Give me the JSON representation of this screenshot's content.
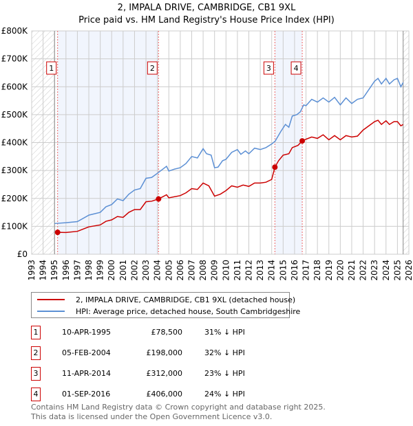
{
  "chart_data": {
    "type": "line",
    "title": "2, IMPALA DRIVE, CAMBRIDGE, CB1 9XL",
    "subtitle": "Price paid vs. HM Land Registry's House Price Index (HPI)",
    "xlim": [
      1993,
      2026
    ],
    "ylim": [
      0,
      800000
    ],
    "x_ticks": [
      "1993",
      "1994",
      "1995",
      "1996",
      "1997",
      "1998",
      "1999",
      "2000",
      "2001",
      "2002",
      "2003",
      "2004",
      "2005",
      "2006",
      "2007",
      "2008",
      "2009",
      "2010",
      "2011",
      "2012",
      "2013",
      "2014",
      "2015",
      "2016",
      "2017",
      "2018",
      "2019",
      "2020",
      "2021",
      "2022",
      "2023",
      "2024",
      "2025",
      "2026"
    ],
    "y_ticks": [
      {
        "v": 0,
        "label": "£0"
      },
      {
        "v": 100000,
        "label": "£100K"
      },
      {
        "v": 200000,
        "label": "£200K"
      },
      {
        "v": 300000,
        "label": "£300K"
      },
      {
        "v": 400000,
        "label": "£400K"
      },
      {
        "v": 500000,
        "label": "£500K"
      },
      {
        "v": 600000,
        "label": "£600K"
      },
      {
        "v": 700000,
        "label": "£700K"
      },
      {
        "v": 800000,
        "label": "£800K"
      }
    ],
    "grid": true,
    "hatched_ranges": [
      [
        1993,
        1995
      ],
      [
        2025.5,
        2026
      ]
    ],
    "shaded_ranges": [
      [
        1995.27,
        2004.1
      ],
      [
        2014.28,
        2016.67
      ]
    ],
    "series": [
      {
        "name": "2, IMPALA DRIVE, CAMBRIDGE, CB1 9XL (detached house)",
        "color": "#cc0000",
        "x": [
          1995.27,
          1996,
          1997,
          1998,
          1999,
          1999.5,
          2000,
          2000.5,
          2001,
          2001.5,
          2002,
          2002.5,
          2003,
          2003.5,
          2004.1,
          2004.8,
          2005,
          2006,
          2006.5,
          2007,
          2007.5,
          2008,
          2008.5,
          2009,
          2009.5,
          2010,
          2010.5,
          2011,
          2011.5,
          2012,
          2012.5,
          2013,
          2013.5,
          2014,
          2014.28,
          2014.6,
          2015,
          2015.5,
          2015.8,
          2016.3,
          2016.67,
          2017,
          2017.5,
          2018,
          2018.5,
          2019,
          2019.5,
          2020,
          2020.5,
          2021,
          2021.5,
          2022,
          2022.5,
          2023,
          2023.3,
          2023.6,
          2024,
          2024.3,
          2024.7,
          2025,
          2025.3,
          2025.5
        ],
        "y": [
          78.5,
          78,
          82,
          98,
          105,
          118,
          123,
          135,
          132,
          150,
          160,
          160,
          188,
          190,
          198,
          213,
          202,
          210,
          220,
          235,
          232,
          255,
          245,
          208,
          215,
          228,
          245,
          240,
          248,
          243,
          255,
          255,
          258,
          268,
          312,
          335,
          355,
          360,
          382,
          390,
          406,
          412,
          420,
          415,
          428,
          410,
          425,
          410,
          425,
          420,
          423,
          445,
          460,
          475,
          480,
          465,
          478,
          465,
          475,
          475,
          460,
          465
        ]
      },
      {
        "name": "HPI: Average price, detached house, South Cambridgeshire",
        "color": "#5b8fd4",
        "x": [
          1995,
          1996,
          1997,
          1998,
          1999,
          1999.5,
          2000,
          2000.5,
          2001,
          2001.5,
          2002,
          2002.5,
          2003,
          2003.5,
          2004,
          2004.8,
          2005,
          2005.5,
          2006,
          2006.5,
          2007,
          2007.5,
          2008,
          2008.3,
          2008.7,
          2009,
          2009.3,
          2009.7,
          2010,
          2010.5,
          2011,
          2011.3,
          2011.7,
          2012,
          2012.5,
          2013,
          2013.5,
          2014,
          2014.3,
          2014.8,
          2015.2,
          2015.5,
          2015.8,
          2016.2,
          2016.5,
          2016.8,
          2017,
          2017.5,
          2018,
          2018.5,
          2019,
          2019.5,
          2020,
          2020.5,
          2021,
          2021.5,
          2022,
          2022.5,
          2023,
          2023.3,
          2023.6,
          2024,
          2024.3,
          2024.7,
          2025,
          2025.3,
          2025.5
        ],
        "y": [
          110,
          113,
          117,
          140,
          150,
          170,
          178,
          198,
          192,
          215,
          230,
          235,
          272,
          275,
          290,
          315,
          298,
          305,
          310,
          325,
          350,
          345,
          378,
          360,
          355,
          310,
          312,
          335,
          340,
          365,
          375,
          358,
          370,
          360,
          380,
          375,
          382,
          395,
          405,
          440,
          465,
          455,
          495,
          500,
          510,
          535,
          532,
          555,
          545,
          560,
          545,
          562,
          535,
          560,
          540,
          555,
          560,
          590,
          620,
          630,
          610,
          630,
          610,
          625,
          630,
          600,
          615
        ]
      }
    ],
    "sales": [
      {
        "n": "1",
        "x": 1995.27,
        "y": 78.5,
        "date": "10-APR-1995",
        "price": "£78,500",
        "hpi": "31% ↓ HPI"
      },
      {
        "n": "2",
        "x": 2004.1,
        "y": 198,
        "date": "05-FEB-2004",
        "price": "£198,000",
        "hpi": "32% ↓ HPI"
      },
      {
        "n": "3",
        "x": 2014.28,
        "y": 312,
        "date": "11-APR-2014",
        "price": "£312,000",
        "hpi": "23% ↓ HPI"
      },
      {
        "n": "4",
        "x": 2016.67,
        "y": 406,
        "date": "01-SEP-2016",
        "price": "£406,000",
        "hpi": "24% ↓ HPI"
      }
    ],
    "y_units": "thousands GBP"
  },
  "footer": {
    "line1": "Contains HM Land Registry data © Crown copyright and database right 2025.",
    "line2": "This data is licensed under the Open Government Licence v3.0."
  }
}
